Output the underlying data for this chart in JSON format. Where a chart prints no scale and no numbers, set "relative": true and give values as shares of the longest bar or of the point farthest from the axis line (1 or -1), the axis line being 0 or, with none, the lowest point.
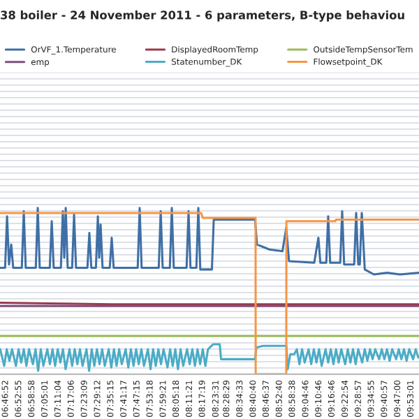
{
  "chart_data": {
    "type": "line",
    "title": "38 boiler - 24 November 2011 - 6 parameters, B-type behaviou",
    "relative": true,
    "grid": "y",
    "legend": "top",
    "marker": "none",
    "line_style": "solid",
    "xlim": [
      6.738,
      9.945
    ],
    "xticks": [
      {
        "value": 6.7811,
        "label": "06:46:52"
      },
      {
        "value": 6.8819,
        "label": "06:52:55"
      },
      {
        "value": 6.9828,
        "label": "06:58:58"
      },
      {
        "value": 7.0836,
        "label": "07:05:01"
      },
      {
        "value": 7.1844,
        "label": "07:11:04"
      },
      {
        "value": 7.285,
        "label": "07:17:06"
      },
      {
        "value": 7.3858,
        "label": "07:23:09"
      },
      {
        "value": 7.4867,
        "label": "07:29:12"
      },
      {
        "value": 7.5875,
        "label": "07:35:15"
      },
      {
        "value": 7.6881,
        "label": "07:41:17"
      },
      {
        "value": 7.7875,
        "label": "07:47:15"
      },
      {
        "value": 7.8883,
        "label": "07:53:18"
      },
      {
        "value": 7.9892,
        "label": "07:59:21"
      },
      {
        "value": 8.0883,
        "label": "08:05:18"
      },
      {
        "value": 8.1892,
        "label": "08:11:21"
      },
      {
        "value": 8.2886,
        "label": "08:17:19"
      },
      {
        "value": 8.3919,
        "label": "08:23:31"
      },
      {
        "value": 8.4747,
        "label": "08:28:29"
      },
      {
        "value": 8.5758,
        "label": "08:34:33"
      },
      {
        "value": 8.6778,
        "label": "08:40:40"
      },
      {
        "value": 8.7769,
        "label": "08:46:37"
      },
      {
        "value": 8.8778,
        "label": "08:52:40"
      },
      {
        "value": 8.9772,
        "label": "08:58:38"
      },
      {
        "value": 9.0794,
        "label": "09:04:46"
      },
      {
        "value": 9.1794,
        "label": "09:10:46"
      },
      {
        "value": 9.2794,
        "label": "09:16:46"
      },
      {
        "value": 9.3817,
        "label": "09:22:54"
      },
      {
        "value": 9.4825,
        "label": "09:28:57"
      },
      {
        "value": 9.5819,
        "label": "09:34:55"
      },
      {
        "value": 9.6825,
        "label": "09:40:57"
      },
      {
        "value": 9.7833,
        "label": "09:47:00"
      },
      {
        "value": 9.8836,
        "label": "09:53:01"
      }
    ],
    "series": [
      {
        "name": "OrVF_1.Temperature",
        "color": "#3f6fa6",
        "x": [
          6.74,
          6.777,
          6.792,
          6.807,
          6.824,
          6.839,
          6.905,
          6.92,
          6.935,
          7.012,
          7.027,
          7.042,
          7.119,
          7.134,
          7.149,
          7.204,
          7.219,
          7.23,
          7.241,
          7.256,
          7.29,
          7.305,
          7.32,
          7.407,
          7.422,
          7.437,
          7.472,
          7.487,
          7.497,
          7.508,
          7.523,
          7.578,
          7.593,
          7.608,
          7.792,
          7.807,
          7.822,
          7.953,
          7.968,
          7.983,
          8.038,
          8.053,
          8.068,
          8.166,
          8.181,
          8.196,
          8.241,
          8.256,
          8.271,
          8.36,
          8.374,
          8.69,
          8.705,
          8.8,
          8.9,
          8.929,
          8.95,
          9.143,
          9.175,
          9.19,
          9.235,
          9.25,
          9.265,
          9.342,
          9.357,
          9.372,
          9.449,
          9.464,
          9.48,
          9.492,
          9.507,
          9.53,
          9.6,
          9.7,
          9.8,
          9.945
        ],
        "values": [
          0.64,
          0.64,
          0.95,
          0.66,
          0.78,
          0.64,
          0.64,
          0.98,
          0.64,
          0.64,
          1.0,
          0.64,
          0.64,
          0.92,
          0.64,
          0.64,
          0.98,
          0.7,
          1.0,
          0.64,
          0.64,
          0.96,
          0.64,
          0.64,
          0.85,
          0.64,
          0.64,
          0.95,
          0.7,
          0.9,
          0.64,
          0.64,
          0.82,
          0.64,
          0.64,
          1.0,
          0.64,
          0.64,
          0.98,
          0.64,
          0.64,
          1.0,
          0.64,
          0.64,
          0.98,
          0.64,
          0.64,
          1.0,
          0.63,
          0.63,
          0.93,
          0.93,
          0.78,
          0.75,
          0.74,
          0.88,
          0.68,
          0.67,
          0.82,
          0.67,
          0.67,
          0.95,
          0.67,
          0.67,
          0.98,
          0.66,
          0.66,
          0.97,
          0.66,
          0.66,
          0.97,
          0.63,
          0.6,
          0.61,
          0.6,
          0.61
        ]
      },
      {
        "name": "DisplayedRoomTemp",
        "color": "#9b3a4b",
        "x": [
          6.74,
          7.6,
          8.3,
          9.945
        ],
        "values": [
          0.43,
          0.42,
          0.42,
          0.42
        ]
      },
      {
        "name": "OutsideTempSensorTem",
        "color": "#9bbb59",
        "x": [
          6.74,
          9.945
        ],
        "values": [
          0.23,
          0.23
        ]
      },
      {
        "name": "emp",
        "color": "#7f4f7f",
        "x": [
          6.74,
          7.6,
          8.3,
          9.945
        ],
        "values": [
          0.41,
          0.41,
          0.41,
          0.41
        ]
      },
      {
        "name": "Statenumber_DK",
        "color": "#4bacc6",
        "x": [
          6.74,
          6.77,
          6.79,
          6.81,
          6.83,
          6.86,
          6.88,
          6.9,
          6.92,
          6.94,
          6.96,
          6.99,
          7.01,
          7.03,
          7.05,
          7.07,
          7.1,
          7.12,
          7.14,
          7.16,
          7.18,
          7.2,
          7.22,
          7.24,
          7.27,
          7.29,
          7.31,
          7.33,
          7.35,
          7.37,
          7.4,
          7.42,
          7.44,
          7.46,
          7.48,
          7.5,
          7.52,
          7.54,
          7.57,
          7.59,
          7.61,
          7.63,
          7.65,
          7.67,
          7.7,
          7.72,
          7.74,
          7.76,
          7.78,
          7.8,
          7.82,
          7.84,
          7.87,
          7.89,
          7.91,
          7.93,
          7.95,
          7.97,
          7.99,
          8.02,
          8.04,
          8.06,
          8.08,
          8.1,
          8.12,
          8.14,
          8.17,
          8.19,
          8.21,
          8.23,
          8.25,
          8.27,
          8.29,
          8.31,
          8.33,
          8.37,
          8.42,
          8.43,
          8.69,
          8.7,
          8.75,
          8.93,
          8.94,
          8.96,
          8.99,
          9.01,
          9.03,
          9.05,
          9.07,
          9.1,
          9.12,
          9.14,
          9.16,
          9.18,
          9.2,
          9.23,
          9.25,
          9.27,
          9.29,
          9.31,
          9.33,
          9.35,
          9.38,
          9.4,
          9.42,
          9.44,
          9.46,
          9.48,
          9.51,
          9.53,
          9.55,
          9.57,
          9.59,
          9.61,
          9.64,
          9.66,
          9.68,
          9.7,
          9.72,
          9.74,
          9.77,
          9.79,
          9.81,
          9.83,
          9.85,
          9.87,
          9.9,
          9.92,
          9.94
        ],
        "values": [
          0.15,
          0.05,
          0.15,
          0.08,
          0.15,
          0.05,
          0.15,
          0.07,
          0.15,
          0.05,
          0.15,
          0.06,
          0.15,
          0.02,
          0.15,
          0.05,
          0.15,
          0.06,
          0.15,
          0.05,
          0.15,
          0.07,
          0.15,
          0.03,
          0.15,
          0.05,
          0.15,
          0.06,
          0.15,
          0.05,
          0.15,
          0.02,
          0.15,
          0.05,
          0.15,
          0.06,
          0.15,
          0.05,
          0.15,
          0.04,
          0.15,
          0.05,
          0.15,
          0.06,
          0.15,
          0.04,
          0.15,
          0.05,
          0.15,
          0.06,
          0.15,
          0.05,
          0.15,
          0.03,
          0.15,
          0.05,
          0.15,
          0.06,
          0.15,
          0.04,
          0.15,
          0.05,
          0.15,
          0.03,
          0.15,
          0.05,
          0.15,
          0.06,
          0.15,
          0.05,
          0.15,
          0.06,
          0.15,
          0.05,
          0.15,
          0.18,
          0.18,
          0.09,
          0.09,
          0.16,
          0.17,
          0.17,
          0.03,
          0.12,
          0.12,
          0.15,
          0.06,
          0.15,
          0.07,
          0.15,
          0.06,
          0.15,
          0.07,
          0.15,
          0.05,
          0.15,
          0.07,
          0.15,
          0.06,
          0.15,
          0.07,
          0.15,
          0.06,
          0.15,
          0.07,
          0.15,
          0.06,
          0.15,
          0.07,
          0.15,
          0.08,
          0.15,
          0.09,
          0.15,
          0.09,
          0.15,
          0.09,
          0.15,
          0.08,
          0.15,
          0.09,
          0.15,
          0.09,
          0.15,
          0.08,
          0.15,
          0.09,
          0.15,
          0.1
        ]
      },
      {
        "name": "Flowsetpoint_DK",
        "color": "#f79646",
        "x": [
          6.74,
          8.277,
          8.29,
          8.694,
          8.695,
          8.929,
          8.93,
          9.304,
          9.31,
          9.945
        ],
        "values": [
          0.97,
          0.97,
          0.94,
          0.94,
          0.0,
          0.0,
          0.92,
          0.92,
          0.93,
          0.93
        ]
      }
    ]
  }
}
